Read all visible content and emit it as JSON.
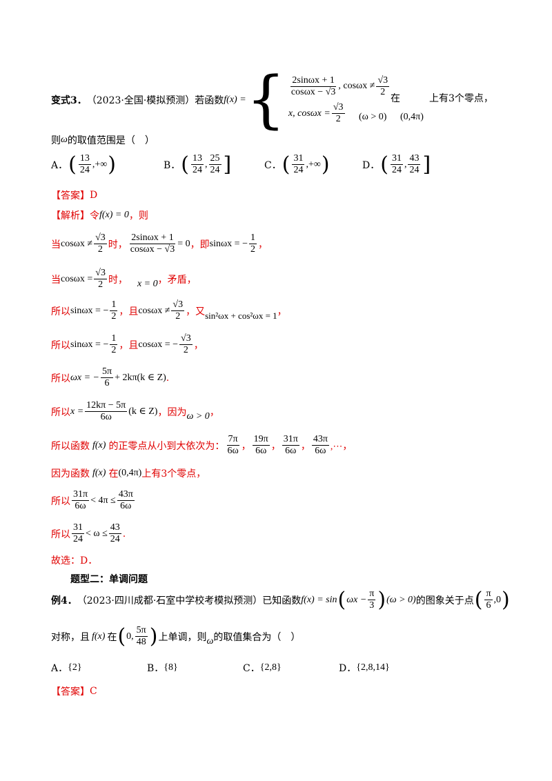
{
  "q3": {
    "label": "变式3．",
    "source": "（2023·全国·模拟预测）若函数",
    "func": "f(x) =",
    "piece1_num": "2sinωx + 1",
    "piece1_den": "cosωx − √3",
    "piece1_cond_pre": ", cosωx ≠",
    "piece1_cond_num": "√3",
    "piece1_cond_den": "2",
    "piece2_pre": "x, cosωx =",
    "piece2_num": "√3",
    "piece2_den": "2",
    "omega_cond": "(ω > 0)",
    "at": "在",
    "interval": "(0,4π)",
    "zeros": "上有3个零点，",
    "line2": "则",
    "omega": "ω",
    "line2_rest": "的取值范围是（　）",
    "options": [
      {
        "letter": "A．",
        "n1": "13",
        "d1": "24",
        "right": "+∞",
        "close": ")",
        "open": "("
      },
      {
        "letter": "B．",
        "n1": "13",
        "d1": "24",
        "n2": "25",
        "d2": "24",
        "open": "(",
        "close": "]"
      },
      {
        "letter": "C．",
        "n1": "31",
        "d1": "24",
        "right": "+∞",
        "open": "(",
        "close": ")"
      },
      {
        "letter": "D．",
        "n1": "31",
        "d1": "24",
        "n2": "43",
        "d2": "24",
        "open": "(",
        "close": "]"
      }
    ]
  },
  "ans3": {
    "label": "【答案】",
    "value": "D"
  },
  "sol": {
    "label": "【解析】",
    "l1a": "令 ",
    "l1m": "f(x) = 0",
    "l1b": "，则",
    "l2a": "当",
    "l2m1": "cosωx ≠",
    "l2n": "√3",
    "l2d": "2",
    "l2b": "时，",
    "l2fn": "2sinωx + 1",
    "l2fd": "cosωx − √3",
    "l2eq": "= 0",
    "l2c": "，即",
    "l2m2": "sinωx = −",
    "l2n2": "1",
    "l2d2": "2",
    "l2e": "，",
    "l3a": "当",
    "l3m": "cosωx =",
    "l3n": "√3",
    "l3d": "2",
    "l3b": "时，",
    "l3m2": "x = 0",
    "l3c": "，矛盾，",
    "l4a": "所以",
    "l4m": "sinωx = −",
    "l4n": "1",
    "l4d": "2",
    "l4b": "，且",
    "l4m2": "cosωx ≠",
    "l4n2": "√3",
    "l4d2": "2",
    "l4c": "，又",
    "l4m3": "sin²ωx + cos²ωx = 1",
    "l4e": "，",
    "l5a": "所以",
    "l5m": "sinωx = −",
    "l5n": "1",
    "l5d": "2",
    "l5b": "，且",
    "l5m2": "cosωx = −",
    "l5n2": "√3",
    "l5d2": "2",
    "l5c": "，",
    "l6a": "所以",
    "l6m": "ωx = −",
    "l6n": "5π",
    "l6d": "6",
    "l6m2": "+ 2kπ(k ∈ Z)",
    "l6b": ".",
    "l7a": "所以",
    "l7m": "x =",
    "l7n": "12kπ − 5π",
    "l7d": "6ω",
    "l7m2": "(k ∈ Z)",
    "l7b": "，因为",
    "l7m3": "ω > 0",
    "l7c": "，",
    "l8a": "所以函数",
    "l8m": "f(x)",
    "l8b": "的正零点从小到大依次为：",
    "l8list": [
      {
        "n": "7π",
        "d": "6ω"
      },
      {
        "n": "19π",
        "d": "6ω"
      },
      {
        "n": "31π",
        "d": "6ω"
      },
      {
        "n": "43π",
        "d": "6ω"
      }
    ],
    "l8sep": "，",
    "l8end": ",⋯，",
    "l9a": "因为函数",
    "l9m": "f(x)",
    "l9b": "在",
    "l9m2": "(0,4π)",
    "l9c": "上有3个零点，",
    "l10a": "所以",
    "l10n1": "31π",
    "l10d1": "6ω",
    "l10m": "< 4π ≤",
    "l10n2": "43π",
    "l10d2": "6ω",
    "l11a": "所以",
    "l11n1": "31",
    "l11d1": "24",
    "l11m": "< ω ≤",
    "l11n2": "43",
    "l11d2": "24",
    "l11b": ".",
    "l12": "故选：D．"
  },
  "section2": "题型二：单调问题",
  "q4": {
    "label": "例4．",
    "source": "（2023·四川成都·石室中学校考模拟预测）已知函数",
    "func": "f(x) = sin",
    "inner_a": "ωx −",
    "inner_n": "π",
    "inner_d": "3",
    "omega_cond": "(ω > 0)",
    "tail": "的图象关于点",
    "pt_n": "π",
    "pt_d": "6",
    "pt_end": ",0",
    "l2a": "对称，且",
    "l2m": "f(x)",
    "l2b": "在",
    "l2int_a": "0,",
    "l2int_n": "5π",
    "l2int_d": "48",
    "l2c": "上单调，则",
    "omega": "ω",
    "l2d": "的取值集合为（　）",
    "options": [
      {
        "letter": "A．",
        "value": "{2}"
      },
      {
        "letter": "B．",
        "value": "{8}"
      },
      {
        "letter": "C．",
        "value": "{2,8}"
      },
      {
        "letter": "D．",
        "value": "{2,8,14}"
      }
    ]
  },
  "ans4": {
    "label": "【答案】",
    "value": "C"
  }
}
